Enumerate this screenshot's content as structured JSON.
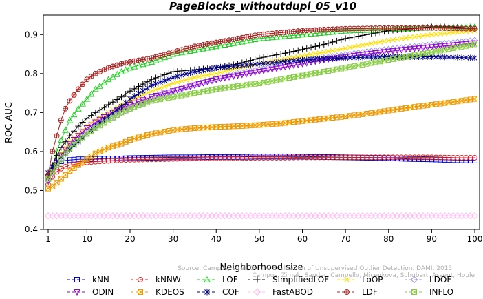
{
  "chart_data": {
    "type": "line",
    "title": "PageBlocks_withoutdupl_05_v10",
    "xlabel": "Neighborhood size",
    "ylabel": "ROC AUC",
    "xlim": [
      1,
      100
    ],
    "ylim": [
      0.4,
      0.95
    ],
    "x_ticks": [
      "1",
      "10",
      "20",
      "30",
      "40",
      "50",
      "60",
      "70",
      "80",
      "90",
      "100"
    ],
    "y_ticks": [
      "0.4",
      "0.5",
      "0.6",
      "0.7",
      "0.8",
      "0.9"
    ],
    "watermark": [
      "Source: Campos, et al. On the Evaluation of Unsupervised Outlier Detection. DAMI, 2015.",
      "Campos, Zimek, Sander, Campello, Micenkova, Schubert, Assent, Houle"
    ],
    "x": [
      1,
      2,
      3,
      4,
      5,
      6,
      8,
      10,
      12,
      15,
      18,
      20,
      25,
      30,
      35,
      40,
      45,
      50,
      55,
      60,
      65,
      70,
      75,
      80,
      85,
      90,
      95,
      100
    ],
    "series": [
      {
        "name": "kNN",
        "color": "#0000cc",
        "marker": "square",
        "values": [
          0.535,
          0.56,
          0.57,
          0.575,
          0.577,
          0.578,
          0.58,
          0.58,
          0.581,
          0.582,
          0.582,
          0.583,
          0.584,
          0.585,
          0.585,
          0.586,
          0.586,
          0.587,
          0.587,
          0.587,
          0.586,
          0.585,
          0.584,
          0.583,
          0.581,
          0.58,
          0.578,
          0.577
        ]
      },
      {
        "name": "kNNW",
        "color": "#dd2222",
        "marker": "circle",
        "values": [
          0.515,
          0.535,
          0.548,
          0.556,
          0.561,
          0.565,
          0.569,
          0.572,
          0.574,
          0.576,
          0.578,
          0.579,
          0.58,
          0.581,
          0.582,
          0.583,
          0.583,
          0.584,
          0.584,
          0.585,
          0.585,
          0.585,
          0.585,
          0.585,
          0.585,
          0.585,
          0.584,
          0.584
        ]
      },
      {
        "name": "LOF",
        "color": "#22cc22",
        "marker": "triangle",
        "values": [
          0.53,
          0.56,
          0.6,
          0.63,
          0.655,
          0.68,
          0.71,
          0.735,
          0.76,
          0.785,
          0.805,
          0.815,
          0.83,
          0.85,
          0.86,
          0.87,
          0.88,
          0.89,
          0.895,
          0.9,
          0.905,
          0.91,
          0.912,
          0.914,
          0.916,
          0.918,
          0.919,
          0.92
        ]
      },
      {
        "name": "SimplifiedLOF",
        "color": "#000000",
        "marker": "plus",
        "values": [
          0.54,
          0.565,
          0.59,
          0.61,
          0.625,
          0.64,
          0.665,
          0.685,
          0.7,
          0.72,
          0.74,
          0.755,
          0.785,
          0.805,
          0.81,
          0.815,
          0.825,
          0.84,
          0.85,
          0.862,
          0.875,
          0.89,
          0.9,
          0.91,
          0.915,
          0.92,
          0.92,
          0.915
        ]
      },
      {
        "name": "LoOP",
        "color": "#ffdd00",
        "marker": "x",
        "values": [
          0.53,
          0.55,
          0.575,
          0.595,
          0.61,
          0.625,
          0.645,
          0.665,
          0.68,
          0.7,
          0.72,
          0.73,
          0.755,
          0.775,
          0.79,
          0.8,
          0.815,
          0.825,
          0.835,
          0.845,
          0.855,
          0.865,
          0.875,
          0.885,
          0.893,
          0.9,
          0.905,
          0.91
        ]
      },
      {
        "name": "LDOF",
        "color": "#9999ee",
        "marker": "diamond",
        "values": [
          0.525,
          0.545,
          0.565,
          0.58,
          0.595,
          0.61,
          0.63,
          0.65,
          0.665,
          0.685,
          0.7,
          0.71,
          0.735,
          0.755,
          0.77,
          0.785,
          0.8,
          0.81,
          0.82,
          0.83,
          0.84,
          0.848,
          0.856,
          0.862,
          0.868,
          0.874,
          0.879,
          0.885
        ]
      },
      {
        "name": "ODIN",
        "color": "#9900cc",
        "marker": "triangle-down",
        "values": [
          0.525,
          0.55,
          0.57,
          0.59,
          0.605,
          0.62,
          0.64,
          0.66,
          0.675,
          0.695,
          0.71,
          0.72,
          0.74,
          0.755,
          0.77,
          0.785,
          0.795,
          0.805,
          0.815,
          0.825,
          0.835,
          0.843,
          0.85,
          0.857,
          0.863,
          0.868,
          0.873,
          0.878
        ]
      },
      {
        "name": "KDEOS",
        "color": "#ee9900",
        "marker": "square-x",
        "values": [
          0.505,
          0.51,
          0.52,
          0.53,
          0.54,
          0.55,
          0.565,
          0.58,
          0.595,
          0.61,
          0.62,
          0.63,
          0.645,
          0.655,
          0.66,
          0.663,
          0.665,
          0.668,
          0.672,
          0.678,
          0.684,
          0.69,
          0.697,
          0.705,
          0.713,
          0.72,
          0.727,
          0.735
        ]
      },
      {
        "name": "COF",
        "color": "#000088",
        "marker": "asterisk",
        "values": [
          0.545,
          0.56,
          0.575,
          0.585,
          0.595,
          0.605,
          0.625,
          0.645,
          0.665,
          0.69,
          0.715,
          0.735,
          0.77,
          0.79,
          0.805,
          0.815,
          0.82,
          0.825,
          0.83,
          0.835,
          0.838,
          0.84,
          0.842,
          0.843,
          0.843,
          0.843,
          0.842,
          0.84
        ]
      },
      {
        "name": "FastABOD",
        "color": "#ffbbee",
        "marker": "diamond",
        "values": [
          0.435,
          0.435,
          0.435,
          0.435,
          0.435,
          0.435,
          0.435,
          0.435,
          0.435,
          0.435,
          0.435,
          0.435,
          0.435,
          0.435,
          0.435,
          0.435,
          0.435,
          0.435,
          0.435,
          0.435,
          0.435,
          0.435,
          0.435,
          0.435,
          0.435,
          0.435,
          0.435,
          0.435
        ]
      },
      {
        "name": "LDF",
        "color": "#aa2222",
        "marker": "circle-plus",
        "values": [
          0.54,
          0.6,
          0.64,
          0.68,
          0.71,
          0.73,
          0.76,
          0.785,
          0.8,
          0.815,
          0.825,
          0.83,
          0.84,
          0.855,
          0.87,
          0.88,
          0.89,
          0.9,
          0.905,
          0.91,
          0.913,
          0.915,
          0.916,
          0.917,
          0.917,
          0.917,
          0.916,
          0.915
        ]
      },
      {
        "name": "INFLO",
        "color": "#88cc44",
        "marker": "square-x",
        "values": [
          0.53,
          0.548,
          0.565,
          0.58,
          0.595,
          0.608,
          0.628,
          0.645,
          0.66,
          0.68,
          0.7,
          0.71,
          0.73,
          0.74,
          0.75,
          0.76,
          0.768,
          0.775,
          0.785,
          0.795,
          0.805,
          0.815,
          0.825,
          0.835,
          0.845,
          0.855,
          0.865,
          0.875
        ]
      }
    ]
  }
}
